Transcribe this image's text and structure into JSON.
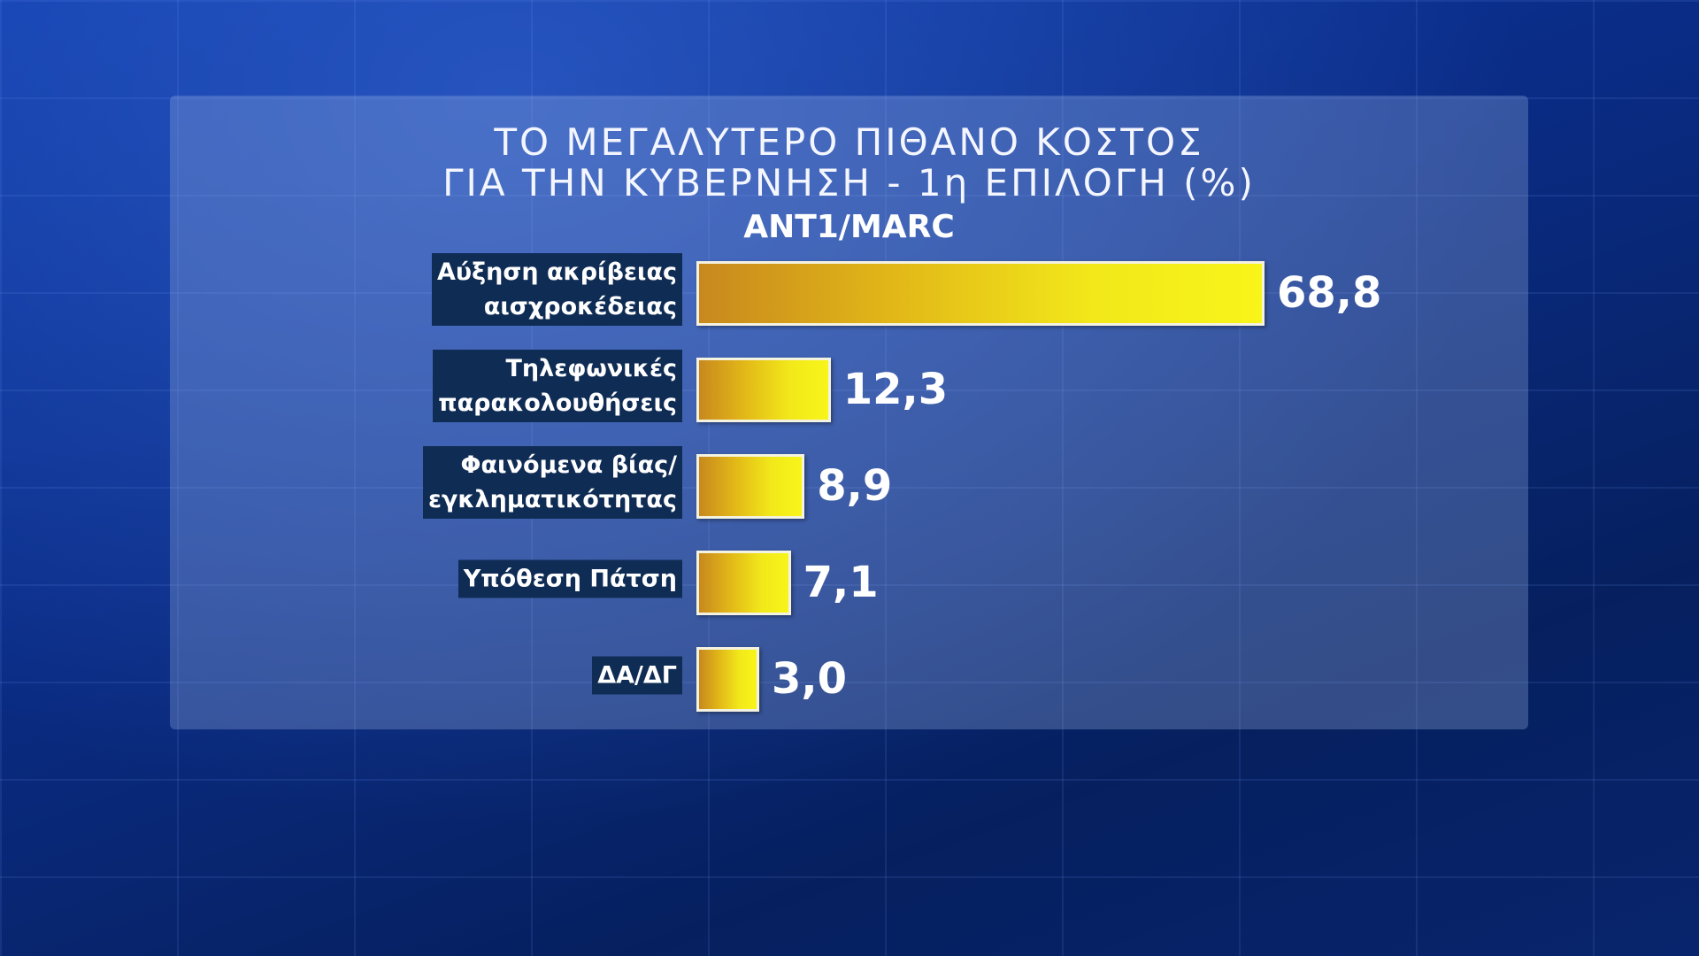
{
  "chart_data": {
    "type": "bar",
    "title": "ΤΟ ΜΕΓΑΛΥΤΕΡΟ ΠΙΘΑΝΟ ΚΟΣΤΟΣ\nΓΙΑ ΤΗΝ ΚΥΒΕΡΝΗΣΗ - 1η ΕΠΙΛΟΓΗ (%)",
    "subtitle": "ANT1/MARC",
    "categories": [
      "Αύξηση ακρίβειας\nαισχροκέδειας",
      "Τηλεφωνικές\nπαρακολουθήσεις",
      "Φαινόμενα βίας/\nεγκληματικότητας",
      "Υπόθεση Πάτση",
      "ΔΑ/ΔΓ"
    ],
    "values": [
      68.8,
      12.3,
      8.9,
      7.1,
      3.0
    ],
    "value_labels": [
      "68,8",
      "12,3",
      "8,9",
      "7,1",
      "3,0"
    ],
    "color": "#f2e81a"
  }
}
